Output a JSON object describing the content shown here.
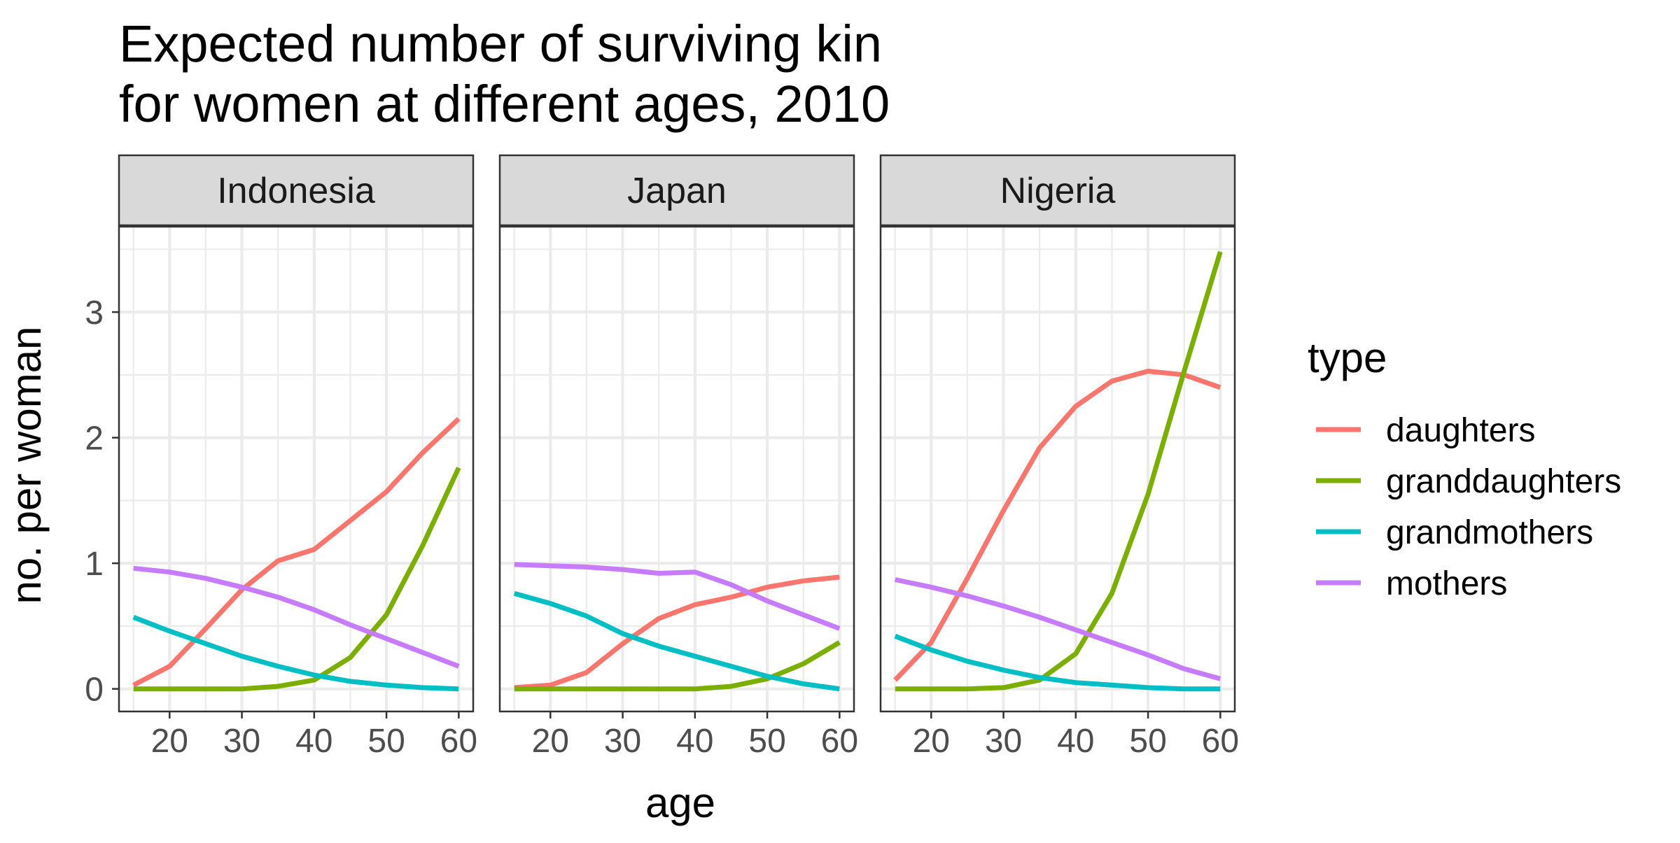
{
  "chart_data": {
    "type": "line",
    "title_lines": [
      "Expected number of surviving kin",
      "for women at different ages, 2010"
    ],
    "xlabel": "age",
    "ylabel": "no. per woman",
    "xlim": [
      13,
      62
    ],
    "ylim": [
      -0.18,
      3.68
    ],
    "x_ticks": [
      20,
      30,
      40,
      50,
      60
    ],
    "x_tick_labels": [
      "20",
      "30",
      "40",
      "50",
      "60"
    ],
    "y_ticks": [
      0,
      1,
      2,
      3
    ],
    "y_tick_labels": [
      "0",
      "1",
      "2",
      "3"
    ],
    "grid": true,
    "legend": {
      "title": "type",
      "position": "right"
    },
    "x": [
      15,
      20,
      25,
      30,
      35,
      40,
      45,
      50,
      55,
      60
    ],
    "series_colors": {
      "daughters": "#F8766D",
      "granddaughters": "#7CAE00",
      "grandmothers": "#00BFC4",
      "mothers": "#C77CFF"
    },
    "panels": [
      {
        "name": "Indonesia",
        "series": [
          {
            "name": "daughters",
            "values": [
              0.03,
              0.18,
              0.48,
              0.79,
              1.02,
              1.11,
              1.34,
              1.57,
              1.88,
              2.15
            ]
          },
          {
            "name": "granddaughters",
            "values": [
              0.0,
              0.0,
              0.0,
              0.0,
              0.02,
              0.07,
              0.25,
              0.59,
              1.14,
              1.76
            ]
          },
          {
            "name": "grandmothers",
            "values": [
              0.57,
              0.46,
              0.36,
              0.26,
              0.18,
              0.11,
              0.06,
              0.03,
              0.01,
              0.0
            ]
          },
          {
            "name": "mothers",
            "values": [
              0.96,
              0.93,
              0.88,
              0.81,
              0.73,
              0.63,
              0.51,
              0.4,
              0.29,
              0.18
            ]
          }
        ]
      },
      {
        "name": "Japan",
        "series": [
          {
            "name": "daughters",
            "values": [
              0.01,
              0.03,
              0.13,
              0.36,
              0.56,
              0.67,
              0.73,
              0.81,
              0.86,
              0.89
            ]
          },
          {
            "name": "granddaughters",
            "values": [
              0.0,
              0.0,
              0.0,
              0.0,
              0.0,
              0.0,
              0.02,
              0.08,
              0.2,
              0.37
            ]
          },
          {
            "name": "grandmothers",
            "values": [
              0.76,
              0.68,
              0.58,
              0.44,
              0.34,
              0.26,
              0.18,
              0.1,
              0.04,
              0.0
            ]
          },
          {
            "name": "mothers",
            "values": [
              0.99,
              0.98,
              0.97,
              0.95,
              0.92,
              0.93,
              0.83,
              0.7,
              0.59,
              0.48
            ]
          }
        ]
      },
      {
        "name": "Nigeria",
        "series": [
          {
            "name": "daughters",
            "values": [
              0.07,
              0.37,
              0.88,
              1.42,
              1.92,
              2.25,
              2.45,
              2.53,
              2.5,
              2.4
            ]
          },
          {
            "name": "granddaughters",
            "values": [
              0.0,
              0.0,
              0.0,
              0.01,
              0.07,
              0.28,
              0.76,
              1.55,
              2.53,
              3.48
            ]
          },
          {
            "name": "grandmothers",
            "values": [
              0.42,
              0.31,
              0.22,
              0.15,
              0.09,
              0.05,
              0.03,
              0.01,
              0.0,
              0.0
            ]
          },
          {
            "name": "mothers",
            "values": [
              0.87,
              0.81,
              0.74,
              0.66,
              0.57,
              0.47,
              0.37,
              0.27,
              0.16,
              0.08
            ]
          }
        ]
      }
    ],
    "legend_items": [
      "daughters",
      "granddaughters",
      "grandmothers",
      "mothers"
    ]
  }
}
